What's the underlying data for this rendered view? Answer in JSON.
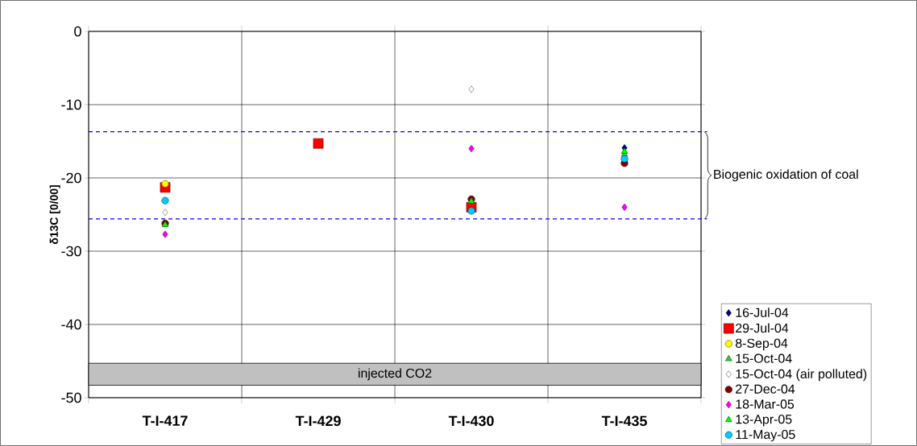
{
  "chart_data": {
    "type": "scatter",
    "ylabel": "δ13C [0/00]",
    "categories": [
      "T-I-417",
      "T-I-429",
      "T-I-430",
      "T-I-435"
    ],
    "series": [
      {
        "name": "16-Jul-04",
        "color": "#000080",
        "marker": "diamond",
        "values": [
          null,
          null,
          null,
          -15.9
        ]
      },
      {
        "name": "29-Jul-04",
        "color": "#ff0000",
        "marker": "square",
        "values": [
          -21.3,
          -15.3,
          -24.0,
          null
        ]
      },
      {
        "name": "8-Sep-04",
        "color": "#ffff00",
        "marker": "circle",
        "values": [
          -20.8,
          null,
          null,
          null
        ]
      },
      {
        "name": "15-Oct-04",
        "color": "#33cc33",
        "marker": "triangle",
        "values": [
          null,
          null,
          null,
          -16.8
        ]
      },
      {
        "name": "15-Oct-04 (air polluted)",
        "color": "#ffffff",
        "marker": "diamond",
        "values": [
          -24.7,
          null,
          -7.9,
          null
        ]
      },
      {
        "name": "27-Dec-04",
        "color": "#800000",
        "marker": "circle",
        "values": [
          -26.2,
          null,
          -22.9,
          -18.0
        ]
      },
      {
        "name": "18-Mar-05",
        "color": "#ff00ff",
        "marker": "diamond",
        "values": [
          -27.7,
          null,
          -16.0,
          -24.0
        ]
      },
      {
        "name": "13-Apr-05",
        "color": "#00ff00",
        "marker": "triangle",
        "values": [
          -26.4,
          null,
          -23.2,
          -16.4
        ]
      },
      {
        "name": "11-May-05",
        "color": "#00ccff",
        "marker": "circle",
        "values": [
          -23.1,
          null,
          -24.5,
          -17.4
        ]
      }
    ],
    "ylim": [
      -50,
      0
    ],
    "yticks": [
      -50,
      -40,
      -30,
      -20,
      -10,
      0
    ],
    "grid": true,
    "legend": "right",
    "ref_lines": [
      {
        "axis": "y",
        "value": -13.7,
        "color": "#0000ff",
        "line_style": "dashed"
      },
      {
        "axis": "y",
        "value": -25.6,
        "color": "#0000ff",
        "line_style": "dashed"
      }
    ],
    "bands": [
      {
        "axis": "y",
        "from": -48.3,
        "to": -45.3,
        "label": "injected CO2",
        "color": "#c0c0c0"
      }
    ],
    "annotations": [
      "Biogenic oxidation of coal"
    ]
  }
}
